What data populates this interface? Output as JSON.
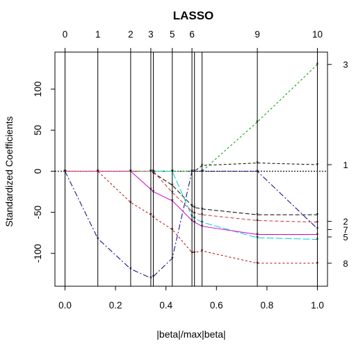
{
  "chart_data": {
    "type": "line",
    "title": "LASSO",
    "xlabel": "|beta|/max|beta|",
    "ylabel": "Standardized Coefficients",
    "xlim": [
      -0.04,
      1.04
    ],
    "ylim": [
      -140,
      145
    ],
    "x_ticks": [
      "0.0",
      "0.2",
      "0.4",
      "0.6",
      "0.8",
      "1.0"
    ],
    "y_ticks": [
      "-100",
      "-50",
      "0",
      "50",
      "100"
    ],
    "x_tick_values": [
      0,
      0.2,
      0.4,
      0.6,
      0.8,
      1.0
    ],
    "y_tick_values": [
      -100,
      -50,
      0,
      50,
      100
    ],
    "top_axis": {
      "labels": [
        "0",
        "1",
        "2",
        "3",
        "5",
        "6",
        "9",
        "10"
      ],
      "positions": [
        0,
        0.13,
        0.26,
        0.34,
        0.425,
        0.503,
        0.762,
        1.0
      ]
    },
    "step_x": [
      0,
      0.13,
      0.26,
      0.34,
      0.35,
      0.425,
      0.503,
      0.513,
      0.543,
      0.762,
      1.0
    ],
    "zero_line": true,
    "right_labels": [
      {
        "label": "3",
        "y": 130
      },
      {
        "label": "1",
        "y": 8
      },
      {
        "label": "2",
        "y": -61
      },
      {
        "label": "7",
        "y": -71
      },
      {
        "label": "5",
        "y": -80
      },
      {
        "label": "8",
        "y": -112
      }
    ],
    "series": [
      {
        "color": "#000000",
        "dash": "4,3",
        "x": [
          0,
          0.13,
          0.26,
          0.34,
          0.35,
          0.425,
          0.503,
          0.513,
          0.543,
          0.762,
          1.0
        ],
        "y": [
          0,
          0,
          0,
          0,
          0,
          0,
          0,
          0,
          7,
          10,
          8
        ]
      },
      {
        "color": "#000000",
        "dash": "6,3",
        "x": [
          0,
          0.13,
          0.26,
          0.34,
          0.35,
          0.425,
          0.503,
          0.513,
          0.543,
          0.762,
          1.0
        ],
        "y": [
          0,
          0,
          0,
          0,
          -2,
          -17,
          -42,
          -44,
          -46,
          -53,
          -53
        ]
      },
      {
        "color": "#c00000",
        "dash": "3,3",
        "x": [
          0,
          0.13,
          0.26,
          0.34,
          0.35,
          0.425,
          0.503,
          0.513,
          0.543,
          0.762,
          1.0
        ],
        "y": [
          0,
          0,
          -38,
          -53,
          -56,
          -71,
          -99,
          -99,
          -97,
          -112,
          -112
        ]
      },
      {
        "color": "#009900",
        "dash": "3,3",
        "x": [
          0,
          0.13,
          0.26,
          0.34,
          0.35,
          0.425,
          0.503,
          0.513,
          0.543,
          0.762,
          1.0
        ],
        "y": [
          0,
          0,
          0,
          0,
          0,
          0,
          0,
          0,
          0,
          60,
          130
        ]
      },
      {
        "color": "#000080",
        "dash": "8,3,2,3",
        "x": [
          0,
          0.13,
          0.26,
          0.34,
          0.35,
          0.425,
          0.503,
          0.513,
          0.543,
          0.762,
          1.0
        ],
        "y": [
          0,
          -82,
          -119,
          -130,
          -128,
          -106,
          0,
          0,
          0,
          0,
          -70
        ]
      },
      {
        "color": "#00cccc",
        "dash": "10,3",
        "x": [
          0,
          0.13,
          0.26,
          0.34,
          0.35,
          0.425,
          0.503,
          0.513,
          0.543,
          0.762,
          1.0
        ],
        "y": [
          0,
          0,
          0,
          0,
          0,
          0,
          -55,
          -57,
          -62,
          -81,
          -83
        ]
      },
      {
        "color": "#cc00cc",
        "dash": "",
        "x": [
          0,
          0.13,
          0.26,
          0.34,
          0.35,
          0.425,
          0.503,
          0.513,
          0.543,
          0.762,
          1.0
        ],
        "y": [
          0,
          0,
          0,
          -22,
          -25,
          -36,
          -60,
          -62,
          -67,
          -77,
          -77
        ]
      },
      {
        "color": "#cc3333",
        "dash": "5,3",
        "x": [
          0,
          0.13,
          0.26,
          0.34,
          0.35,
          0.425,
          0.503,
          0.513,
          0.543,
          0.762,
          1.0
        ],
        "y": [
          0,
          0,
          0,
          0,
          0,
          -26,
          -49,
          -51,
          -53,
          -60,
          -62
        ]
      }
    ]
  }
}
